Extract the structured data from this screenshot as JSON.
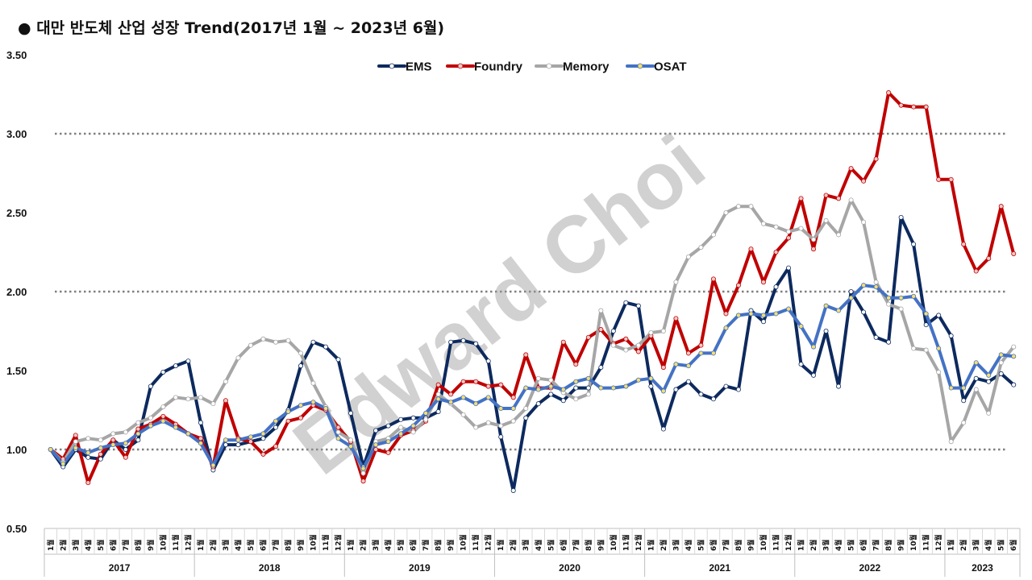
{
  "title": "● 대만 반도체 산업 성장 Trend(2017년 1월 ~ 2023년 6월)",
  "watermark": "Edward Choi",
  "chart_data": {
    "type": "line",
    "title": "대만 반도체 산업 성장 Trend(2017년 1월 ~ 2023년 6월)",
    "ylim": [
      0.5,
      3.5
    ],
    "yticks": [
      "0.50",
      "1.00",
      "1.50",
      "2.00",
      "2.50",
      "3.00",
      "3.50"
    ],
    "gridlines": [
      1.0,
      2.0,
      3.0
    ],
    "legend_position": "top-center",
    "month_suffix": "월",
    "years": [
      {
        "label": "2017",
        "months": 12
      },
      {
        "label": "2018",
        "months": 12
      },
      {
        "label": "2019",
        "months": 12
      },
      {
        "label": "2020",
        "months": 12
      },
      {
        "label": "2021",
        "months": 12
      },
      {
        "label": "2022",
        "months": 12
      },
      {
        "label": "2023",
        "months": 6
      }
    ],
    "series": [
      {
        "name": "EMS",
        "color": "#0d2a5e",
        "marker_fill": "#ffffff",
        "values": [
          1.0,
          0.89,
          1.0,
          0.95,
          0.94,
          1.06,
          1.0,
          1.06,
          1.4,
          1.49,
          1.53,
          1.56,
          1.17,
          0.87,
          1.03,
          1.03,
          1.05,
          1.07,
          1.14,
          1.25,
          1.53,
          1.68,
          1.65,
          1.57,
          1.23,
          0.89,
          1.12,
          1.15,
          1.19,
          1.2,
          1.2,
          1.24,
          1.68,
          1.69,
          1.67,
          1.56,
          1.08,
          0.74,
          1.2,
          1.29,
          1.35,
          1.31,
          1.39,
          1.39,
          1.52,
          1.75,
          1.93,
          1.91,
          1.4,
          1.13,
          1.38,
          1.43,
          1.35,
          1.32,
          1.4,
          1.38,
          1.88,
          1.81,
          2.03,
          2.15,
          1.54,
          1.47,
          1.75,
          1.4,
          2.0,
          1.87,
          1.71,
          1.68,
          2.47,
          2.3,
          1.79,
          1.85,
          1.72,
          1.31,
          1.45,
          1.43,
          1.48,
          1.41
        ]
      },
      {
        "name": "Foundry",
        "color": "#c00000",
        "marker_fill": "#f2c9c9",
        "values": [
          1.0,
          0.94,
          1.09,
          0.79,
          0.97,
          1.06,
          0.95,
          1.13,
          1.16,
          1.21,
          1.16,
          1.1,
          1.07,
          0.89,
          1.31,
          1.07,
          1.05,
          0.97,
          1.02,
          1.18,
          1.2,
          1.28,
          1.25,
          1.14,
          1.05,
          0.8,
          1.0,
          0.98,
          1.09,
          1.12,
          1.18,
          1.41,
          1.35,
          1.43,
          1.43,
          1.4,
          1.41,
          1.33,
          1.6,
          1.39,
          1.39,
          1.68,
          1.54,
          1.71,
          1.76,
          1.67,
          1.7,
          1.62,
          1.72,
          1.52,
          1.83,
          1.61,
          1.66,
          2.08,
          1.86,
          2.04,
          2.27,
          2.06,
          2.25,
          2.34,
          2.59,
          2.27,
          2.61,
          2.59,
          2.78,
          2.7,
          2.84,
          3.26,
          3.18,
          3.17,
          3.17,
          2.71,
          2.71,
          2.3,
          2.13,
          2.21,
          2.54,
          2.24
        ]
      },
      {
        "name": "Memory",
        "color": "#a6a6a6",
        "marker_fill": "#ffffff",
        "values": [
          1.0,
          0.92,
          1.05,
          1.07,
          1.06,
          1.1,
          1.11,
          1.17,
          1.2,
          1.27,
          1.33,
          1.32,
          1.33,
          1.29,
          1.43,
          1.58,
          1.66,
          1.7,
          1.68,
          1.69,
          1.61,
          1.42,
          1.27,
          1.11,
          1.06,
          0.85,
          1.05,
          1.07,
          1.14,
          1.11,
          1.19,
          1.35,
          1.29,
          1.22,
          1.14,
          1.17,
          1.15,
          1.18,
          1.26,
          1.45,
          1.44,
          1.36,
          1.32,
          1.35,
          1.88,
          1.66,
          1.63,
          1.66,
          1.74,
          1.75,
          2.06,
          2.22,
          2.28,
          2.36,
          2.5,
          2.54,
          2.54,
          2.43,
          2.41,
          2.38,
          2.4,
          2.33,
          2.45,
          2.36,
          2.58,
          2.44,
          2.06,
          1.92,
          1.89,
          1.64,
          1.63,
          1.49,
          1.05,
          1.17,
          1.38,
          1.23,
          1.55,
          1.65
        ]
      },
      {
        "name": "OSAT",
        "color": "#4472c4",
        "marker_fill": "#f5df6e",
        "values": [
          1.0,
          0.91,
          1.01,
          0.98,
          1.01,
          1.03,
          1.04,
          1.1,
          1.15,
          1.18,
          1.14,
          1.1,
          1.04,
          0.9,
          1.06,
          1.06,
          1.08,
          1.1,
          1.18,
          1.24,
          1.28,
          1.3,
          1.26,
          1.07,
          1.02,
          0.88,
          1.03,
          1.05,
          1.1,
          1.15,
          1.23,
          1.32,
          1.3,
          1.33,
          1.29,
          1.33,
          1.26,
          1.26,
          1.39,
          1.38,
          1.4,
          1.38,
          1.43,
          1.45,
          1.39,
          1.39,
          1.4,
          1.44,
          1.45,
          1.37,
          1.54,
          1.53,
          1.61,
          1.61,
          1.77,
          1.85,
          1.86,
          1.85,
          1.86,
          1.89,
          1.78,
          1.65,
          1.91,
          1.88,
          1.96,
          2.04,
          2.03,
          1.96,
          1.96,
          1.97,
          1.86,
          1.64,
          1.39,
          1.39,
          1.55,
          1.47,
          1.6,
          1.59
        ]
      }
    ]
  }
}
